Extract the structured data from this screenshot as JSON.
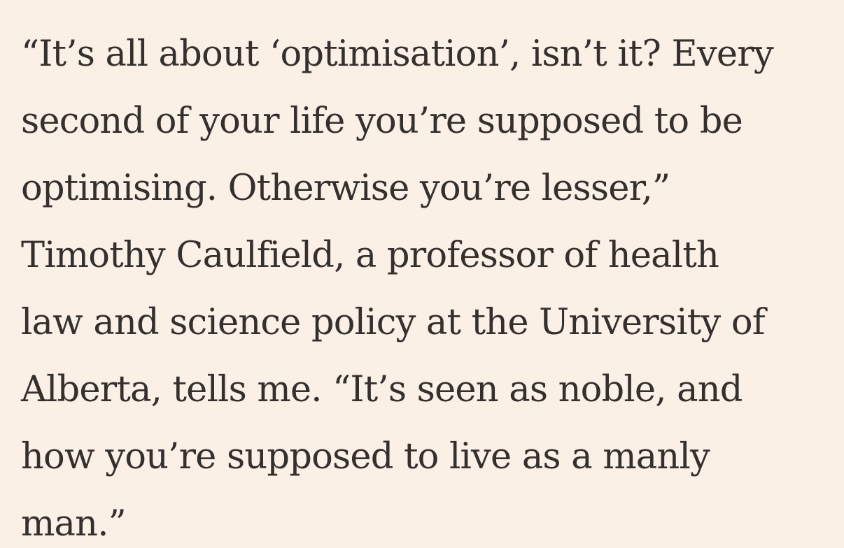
{
  "article": {
    "paragraph_lines": [
      "“It’s all about ‘optimisation’, isn’t it? Every",
      "second of your life you’re supposed to be",
      "optimising. Otherwise you’re lesser,”",
      "Timothy Caulfield, a professor of health",
      "law and science policy at the University of",
      "Alberta, tells me. “It’s seen as noble, and",
      "how you’re supposed to live as a manly",
      "man.”"
    ]
  }
}
